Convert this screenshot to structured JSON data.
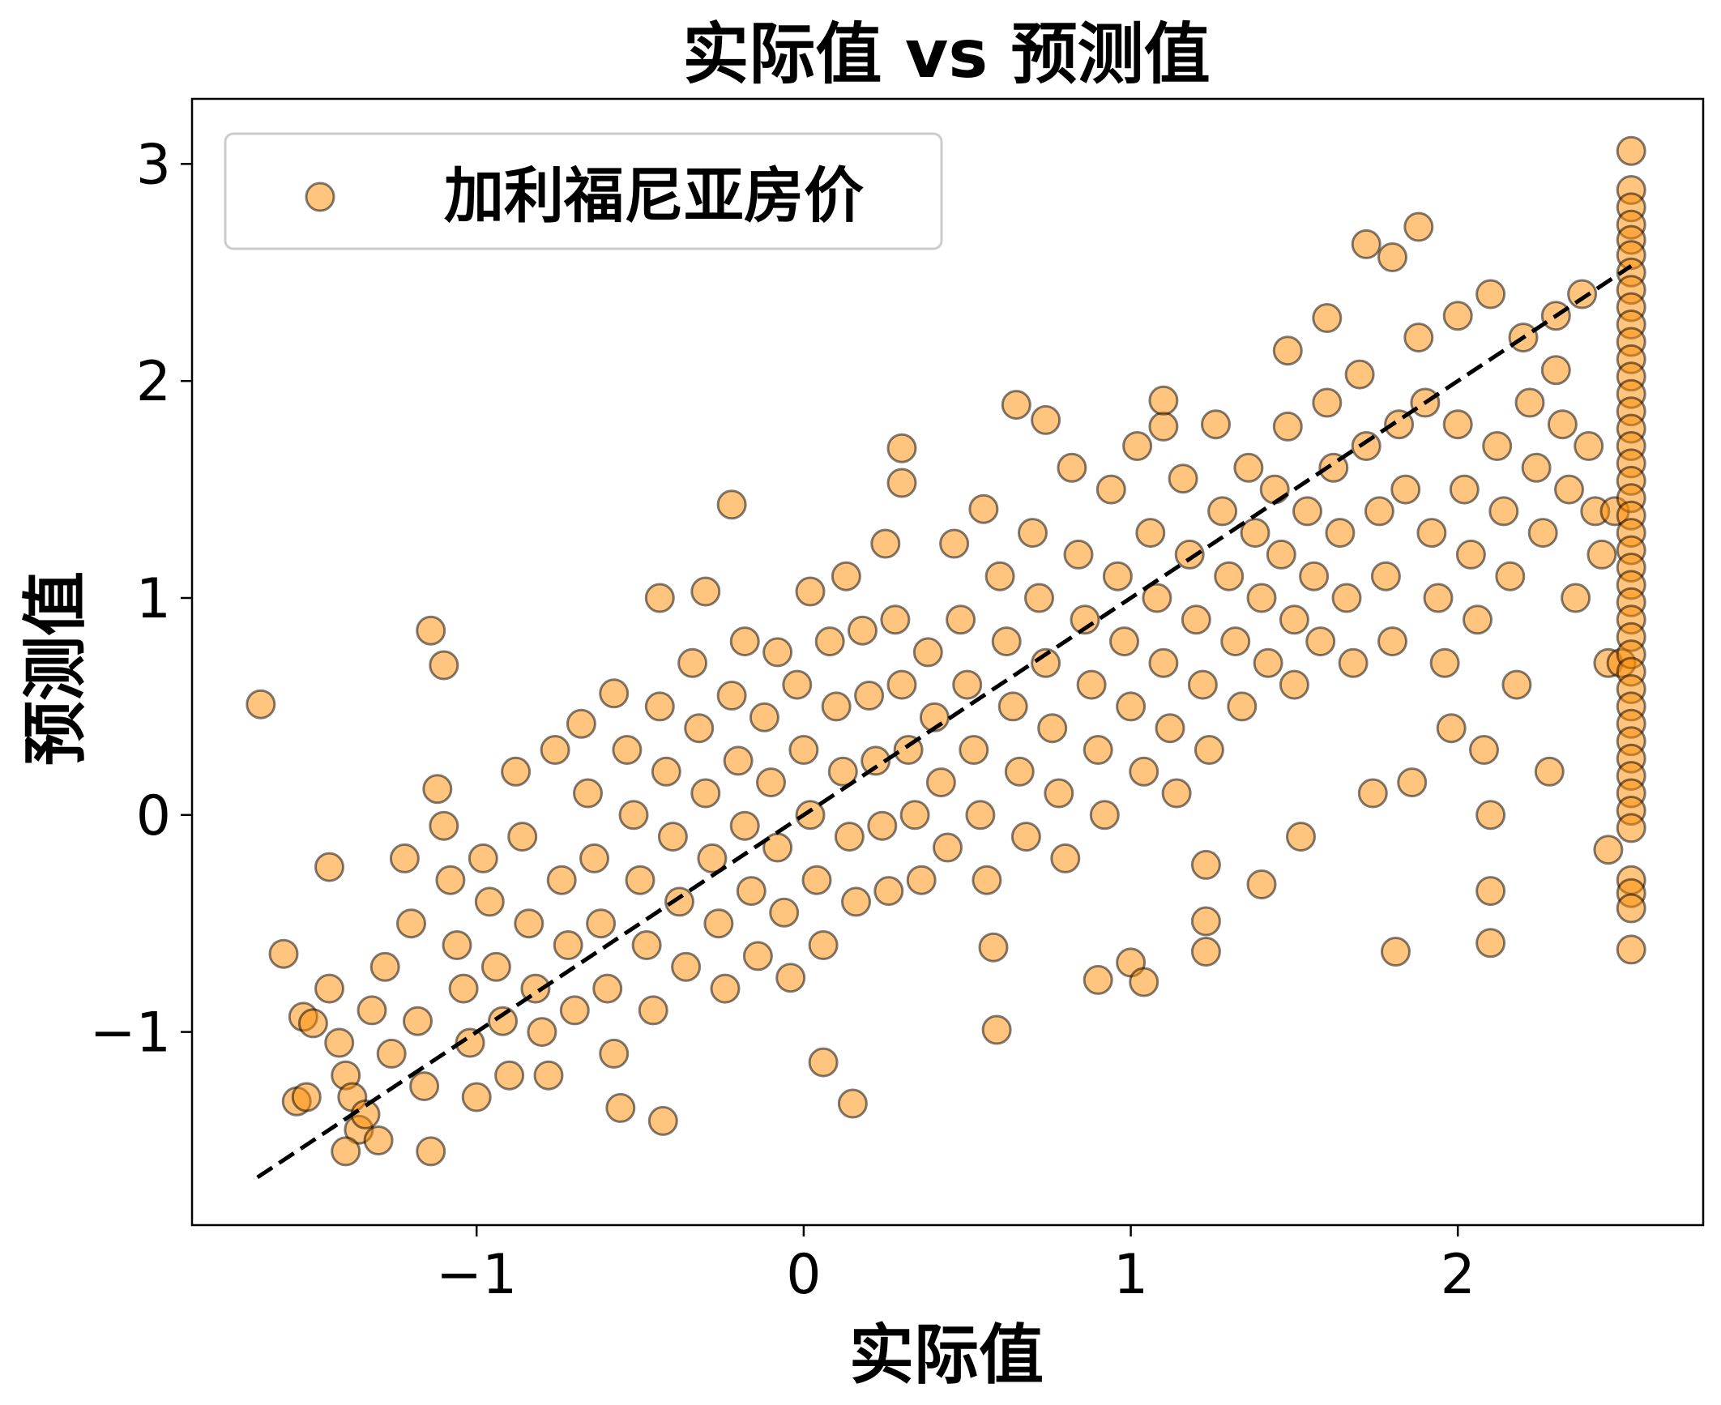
{
  "chart_data": {
    "type": "scatter",
    "title": "实际值 vs 预测值",
    "xlabel": "实际值",
    "ylabel": "预测值",
    "xlim": [
      -1.87,
      2.75
    ],
    "ylim": [
      -1.89,
      3.3
    ],
    "x_ticks": [
      -1,
      0,
      1,
      2
    ],
    "x_tick_labels": [
      "−1",
      "0",
      "1",
      "2"
    ],
    "y_ticks": [
      -1,
      0,
      1,
      2,
      3
    ],
    "y_tick_labels": [
      "−1",
      "0",
      "1",
      "2",
      "3"
    ],
    "grid": false,
    "legend_position": "upper-left",
    "series": [
      {
        "name": "加利福尼亚房价",
        "color": "#ff8c00",
        "alpha": 0.5,
        "edgecolor": "#000000",
        "points": [
          [
            -1.66,
            0.51
          ],
          [
            -1.59,
            -0.64
          ],
          [
            -1.53,
            -0.93
          ],
          [
            -1.5,
            -0.96
          ],
          [
            -1.55,
            -1.32
          ],
          [
            -1.52,
            -1.3
          ],
          [
            -1.45,
            -0.24
          ],
          [
            -1.45,
            -0.8
          ],
          [
            -1.42,
            -1.05
          ],
          [
            -1.4,
            -1.2
          ],
          [
            -1.38,
            -1.3
          ],
          [
            -1.36,
            -1.45
          ],
          [
            -1.4,
            -1.55
          ],
          [
            -1.34,
            -1.38
          ],
          [
            -1.3,
            -1.5
          ],
          [
            -1.32,
            -0.9
          ],
          [
            -1.28,
            -0.7
          ],
          [
            -1.26,
            -1.1
          ],
          [
            -1.22,
            -0.2
          ],
          [
            -1.2,
            -0.5
          ],
          [
            -1.18,
            -0.95
          ],
          [
            -1.16,
            -1.25
          ],
          [
            -1.14,
            -1.55
          ],
          [
            -1.14,
            0.85
          ],
          [
            -1.1,
            0.69
          ],
          [
            -1.12,
            0.12
          ],
          [
            -1.1,
            -0.05
          ],
          [
            -1.08,
            -0.3
          ],
          [
            -1.06,
            -0.6
          ],
          [
            -1.04,
            -0.8
          ],
          [
            -1.02,
            -1.05
          ],
          [
            -1.0,
            -1.3
          ],
          [
            -0.98,
            -0.2
          ],
          [
            -0.96,
            -0.4
          ],
          [
            -0.94,
            -0.7
          ],
          [
            -0.92,
            -0.95
          ],
          [
            -0.9,
            -1.2
          ],
          [
            -0.88,
            0.2
          ],
          [
            -0.86,
            -0.1
          ],
          [
            -0.84,
            -0.5
          ],
          [
            -0.82,
            -0.8
          ],
          [
            -0.8,
            -1.0
          ],
          [
            -0.78,
            -1.2
          ],
          [
            -0.76,
            0.3
          ],
          [
            -0.74,
            -0.3
          ],
          [
            -0.72,
            -0.6
          ],
          [
            -0.7,
            -0.9
          ],
          [
            -0.68,
            0.42
          ],
          [
            -0.66,
            0.1
          ],
          [
            -0.64,
            -0.2
          ],
          [
            -0.62,
            -0.5
          ],
          [
            -0.6,
            -0.8
          ],
          [
            -0.58,
            -1.1
          ],
          [
            -0.58,
            0.56
          ],
          [
            -0.56,
            -1.35
          ],
          [
            -0.54,
            0.3
          ],
          [
            -0.52,
            0.0
          ],
          [
            -0.5,
            -0.3
          ],
          [
            -0.48,
            -0.6
          ],
          [
            -0.46,
            -0.9
          ],
          [
            -0.44,
            0.5
          ],
          [
            -0.44,
            1.0
          ],
          [
            -0.43,
            -1.41
          ],
          [
            -0.42,
            0.2
          ],
          [
            -0.4,
            -0.1
          ],
          [
            -0.38,
            -0.4
          ],
          [
            -0.36,
            -0.7
          ],
          [
            -0.34,
            0.7
          ],
          [
            -0.32,
            0.4
          ],
          [
            -0.3,
            1.03
          ],
          [
            -0.3,
            0.1
          ],
          [
            -0.28,
            -0.2
          ],
          [
            -0.26,
            -0.5
          ],
          [
            -0.24,
            -0.8
          ],
          [
            -0.22,
            1.43
          ],
          [
            -0.22,
            0.55
          ],
          [
            -0.2,
            0.25
          ],
          [
            -0.18,
            0.8
          ],
          [
            -0.18,
            -0.05
          ],
          [
            -0.16,
            -0.35
          ],
          [
            -0.14,
            -0.65
          ],
          [
            -0.12,
            0.45
          ],
          [
            -0.1,
            0.15
          ],
          [
            -0.08,
            0.75
          ],
          [
            -0.08,
            -0.15
          ],
          [
            -0.06,
            -0.45
          ],
          [
            -0.04,
            -0.75
          ],
          [
            -0.02,
            0.6
          ],
          [
            0.0,
            0.3
          ],
          [
            0.02,
            1.03
          ],
          [
            0.02,
            0.0
          ],
          [
            0.04,
            -0.3
          ],
          [
            0.06,
            -0.6
          ],
          [
            0.06,
            -1.14
          ],
          [
            0.08,
            0.8
          ],
          [
            0.1,
            0.5
          ],
          [
            0.12,
            0.2
          ],
          [
            0.13,
            1.1
          ],
          [
            0.14,
            -0.1
          ],
          [
            0.15,
            -1.33
          ],
          [
            0.16,
            -0.4
          ],
          [
            0.18,
            0.85
          ],
          [
            0.2,
            0.55
          ],
          [
            0.22,
            0.25
          ],
          [
            0.24,
            -0.05
          ],
          [
            0.25,
            1.25
          ],
          [
            0.26,
            -0.35
          ],
          [
            0.28,
            0.9
          ],
          [
            0.3,
            1.69
          ],
          [
            0.3,
            1.53
          ],
          [
            0.3,
            0.6
          ],
          [
            0.32,
            0.3
          ],
          [
            0.34,
            0.0
          ],
          [
            0.36,
            -0.3
          ],
          [
            0.38,
            0.75
          ],
          [
            0.4,
            0.45
          ],
          [
            0.42,
            0.15
          ],
          [
            0.44,
            -0.15
          ],
          [
            0.46,
            1.25
          ],
          [
            0.48,
            0.9
          ],
          [
            0.5,
            0.6
          ],
          [
            0.52,
            0.3
          ],
          [
            0.54,
            0.0
          ],
          [
            0.55,
            1.41
          ],
          [
            0.56,
            -0.3
          ],
          [
            0.58,
            -0.61
          ],
          [
            0.59,
            -0.99
          ],
          [
            0.6,
            1.1
          ],
          [
            0.62,
            0.8
          ],
          [
            0.64,
            0.5
          ],
          [
            0.65,
            1.89
          ],
          [
            0.66,
            0.2
          ],
          [
            0.68,
            -0.1
          ],
          [
            0.7,
            1.3
          ],
          [
            0.72,
            1.0
          ],
          [
            0.74,
            0.7
          ],
          [
            0.74,
            1.82
          ],
          [
            0.76,
            0.4
          ],
          [
            0.78,
            0.1
          ],
          [
            0.8,
            -0.2
          ],
          [
            0.82,
            1.6
          ],
          [
            0.84,
            1.2
          ],
          [
            0.86,
            0.9
          ],
          [
            0.88,
            0.6
          ],
          [
            0.9,
            0.3
          ],
          [
            0.9,
            -0.76
          ],
          [
            0.92,
            0.0
          ],
          [
            0.94,
            1.5
          ],
          [
            0.96,
            1.1
          ],
          [
            0.98,
            0.8
          ],
          [
            1.0,
            0.5
          ],
          [
            1.0,
            -0.68
          ],
          [
            1.02,
            1.7
          ],
          [
            1.04,
            -0.77
          ],
          [
            1.04,
            0.2
          ],
          [
            1.06,
            1.3
          ],
          [
            1.08,
            1.0
          ],
          [
            1.1,
            0.7
          ],
          [
            1.1,
            1.79
          ],
          [
            1.1,
            1.91
          ],
          [
            1.12,
            0.4
          ],
          [
            1.14,
            0.1
          ],
          [
            1.16,
            1.55
          ],
          [
            1.18,
            1.2
          ],
          [
            1.2,
            0.9
          ],
          [
            1.22,
            0.6
          ],
          [
            1.23,
            -0.23
          ],
          [
            1.23,
            -0.49
          ],
          [
            1.23,
            -0.63
          ],
          [
            1.24,
            0.3
          ],
          [
            1.26,
            1.8
          ],
          [
            1.28,
            1.4
          ],
          [
            1.3,
            1.1
          ],
          [
            1.32,
            0.8
          ],
          [
            1.34,
            0.5
          ],
          [
            1.36,
            1.6
          ],
          [
            1.38,
            1.3
          ],
          [
            1.4,
            1.0
          ],
          [
            1.4,
            -0.32
          ],
          [
            1.42,
            0.7
          ],
          [
            1.44,
            1.5
          ],
          [
            1.46,
            1.2
          ],
          [
            1.48,
            2.14
          ],
          [
            1.48,
            1.79
          ],
          [
            1.5,
            0.9
          ],
          [
            1.5,
            0.6
          ],
          [
            1.52,
            -0.1
          ],
          [
            1.54,
            1.4
          ],
          [
            1.56,
            1.1
          ],
          [
            1.58,
            0.8
          ],
          [
            1.6,
            2.29
          ],
          [
            1.6,
            1.9
          ],
          [
            1.62,
            1.6
          ],
          [
            1.64,
            1.3
          ],
          [
            1.66,
            1.0
          ],
          [
            1.68,
            0.7
          ],
          [
            1.7,
            2.03
          ],
          [
            1.72,
            1.7
          ],
          [
            1.72,
            2.63
          ],
          [
            1.74,
            0.1
          ],
          [
            1.76,
            1.4
          ],
          [
            1.78,
            1.1
          ],
          [
            1.8,
            2.57
          ],
          [
            1.8,
            0.8
          ],
          [
            1.81,
            -0.63
          ],
          [
            1.82,
            1.8
          ],
          [
            1.84,
            1.5
          ],
          [
            1.86,
            0.15
          ],
          [
            1.88,
            2.71
          ],
          [
            1.88,
            2.2
          ],
          [
            1.9,
            1.9
          ],
          [
            1.92,
            1.3
          ],
          [
            1.94,
            1.0
          ],
          [
            1.96,
            0.7
          ],
          [
            1.98,
            0.4
          ],
          [
            2.0,
            2.3
          ],
          [
            2.0,
            1.8
          ],
          [
            2.02,
            1.5
          ],
          [
            2.04,
            1.2
          ],
          [
            2.06,
            0.9
          ],
          [
            2.08,
            0.3
          ],
          [
            2.1,
            2.4
          ],
          [
            2.1,
            0.0
          ],
          [
            2.1,
            -0.35
          ],
          [
            2.1,
            -0.59
          ],
          [
            2.12,
            1.7
          ],
          [
            2.14,
            1.4
          ],
          [
            2.16,
            1.1
          ],
          [
            2.18,
            0.6
          ],
          [
            2.2,
            2.2
          ],
          [
            2.22,
            1.9
          ],
          [
            2.24,
            1.6
          ],
          [
            2.26,
            1.3
          ],
          [
            2.28,
            0.2
          ],
          [
            2.3,
            2.3
          ],
          [
            2.3,
            2.05
          ],
          [
            2.32,
            1.8
          ],
          [
            2.34,
            1.5
          ],
          [
            2.36,
            1.0
          ],
          [
            2.38,
            2.4
          ],
          [
            2.4,
            1.7
          ],
          [
            2.42,
            1.4
          ],
          [
            2.44,
            1.2
          ],
          [
            2.46,
            0.7
          ],
          [
            2.46,
            -0.16
          ],
          [
            2.48,
            1.4
          ],
          [
            2.5,
            0.7
          ],
          [
            2.53,
            3.06
          ],
          [
            2.53,
            2.88
          ],
          [
            2.53,
            2.8
          ],
          [
            2.53,
            2.72
          ],
          [
            2.53,
            2.65
          ],
          [
            2.53,
            2.58
          ],
          [
            2.53,
            2.5
          ],
          [
            2.53,
            2.42
          ],
          [
            2.53,
            2.34
          ],
          [
            2.53,
            2.26
          ],
          [
            2.53,
            2.18
          ],
          [
            2.53,
            2.1
          ],
          [
            2.53,
            2.02
          ],
          [
            2.53,
            1.94
          ],
          [
            2.53,
            1.86
          ],
          [
            2.53,
            1.78
          ],
          [
            2.53,
            1.7
          ],
          [
            2.53,
            1.62
          ],
          [
            2.53,
            1.54
          ],
          [
            2.53,
            1.46
          ],
          [
            2.53,
            1.38
          ],
          [
            2.53,
            1.3
          ],
          [
            2.53,
            1.22
          ],
          [
            2.53,
            1.14
          ],
          [
            2.53,
            1.06
          ],
          [
            2.53,
            0.98
          ],
          [
            2.53,
            0.9
          ],
          [
            2.53,
            0.82
          ],
          [
            2.53,
            0.74
          ],
          [
            2.53,
            0.66
          ],
          [
            2.53,
            0.58
          ],
          [
            2.53,
            0.5
          ],
          [
            2.53,
            0.42
          ],
          [
            2.53,
            0.34
          ],
          [
            2.53,
            0.26
          ],
          [
            2.53,
            0.18
          ],
          [
            2.53,
            0.1
          ],
          [
            2.53,
            0.02
          ],
          [
            2.53,
            -0.06
          ],
          [
            2.53,
            -0.3
          ],
          [
            2.53,
            -0.36
          ],
          [
            2.53,
            -0.43
          ],
          [
            2.53,
            -0.62
          ]
        ]
      }
    ],
    "reference_line": {
      "style": "dashed",
      "color": "#000000",
      "from": [
        -1.67,
        -1.67
      ],
      "to": [
        2.53,
        2.53
      ]
    }
  }
}
